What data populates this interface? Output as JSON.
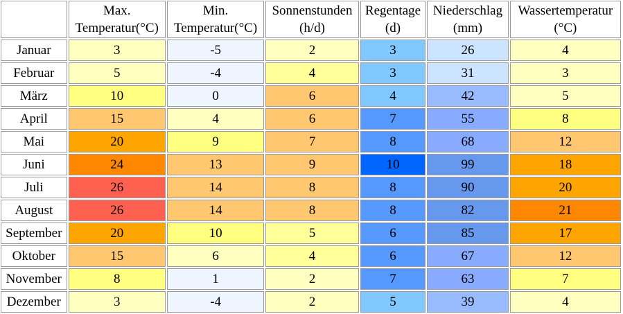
{
  "headers": [
    {
      "line1": "Max.",
      "line2": "Temperatur(°C)"
    },
    {
      "line1": "Min.",
      "line2": "Temperatur(°C)"
    },
    {
      "line1": "Sonnenstunden",
      "line2": "(h/d)"
    },
    {
      "line1": "Regentage",
      "line2": "(d)"
    },
    {
      "line1": "Niederschlag",
      "line2": "(mm)"
    },
    {
      "line1": "Wassertemperatur",
      "line2": "(°C)"
    }
  ],
  "rows": [
    {
      "month": "Januar",
      "values": [
        "3",
        "-5",
        "2",
        "3",
        "26",
        "4"
      ],
      "colors": [
        "#ffffc0",
        "#eef5ff",
        "#ffffc0",
        "#80c8ff",
        "#cce4ff",
        "#ffffc0"
      ]
    },
    {
      "month": "Februar",
      "values": [
        "5",
        "-4",
        "4",
        "3",
        "31",
        "3"
      ],
      "colors": [
        "#ffffc0",
        "#eef5ff",
        "#ffff99",
        "#80c8ff",
        "#cce4ff",
        "#ffffc0"
      ]
    },
    {
      "month": "März",
      "values": [
        "10",
        "0",
        "6",
        "4",
        "42",
        "5"
      ],
      "colors": [
        "#ffff80",
        "#eef5ff",
        "#ffc870",
        "#80c8ff",
        "#99bbff",
        "#ffffc0"
      ]
    },
    {
      "month": "April",
      "values": [
        "15",
        "4",
        "6",
        "7",
        "55",
        "8"
      ],
      "colors": [
        "#ffc870",
        "#ffffc0",
        "#ffc870",
        "#5599ff",
        "#88aaff",
        "#ffff80"
      ]
    },
    {
      "month": "Mai",
      "values": [
        "20",
        "9",
        "7",
        "8",
        "68",
        "12"
      ],
      "colors": [
        "#ffa500",
        "#ffff80",
        "#ffc870",
        "#5599ff",
        "#88aaff",
        "#ffc870"
      ]
    },
    {
      "month": "Juni",
      "values": [
        "24",
        "13",
        "9",
        "10",
        "99",
        "18"
      ],
      "colors": [
        "#ff8800",
        "#ffc870",
        "#ffc870",
        "#0066ff",
        "#6699ee",
        "#ffa500"
      ]
    },
    {
      "month": "Juli",
      "values": [
        "26",
        "14",
        "8",
        "8",
        "90",
        "20"
      ],
      "colors": [
        "#ff6050",
        "#ffc870",
        "#ffc870",
        "#5599ff",
        "#6699ee",
        "#ffa500"
      ]
    },
    {
      "month": "August",
      "values": [
        "26",
        "14",
        "8",
        "8",
        "82",
        "21"
      ],
      "colors": [
        "#ff6050",
        "#ffc870",
        "#ffc870",
        "#5599ff",
        "#6699ee",
        "#ff8800"
      ]
    },
    {
      "month": "September",
      "values": [
        "20",
        "10",
        "5",
        "6",
        "85",
        "17"
      ],
      "colors": [
        "#ffa500",
        "#ffff80",
        "#ffff99",
        "#5599ff",
        "#6699ee",
        "#ffa500"
      ]
    },
    {
      "month": "Oktober",
      "values": [
        "15",
        "6",
        "4",
        "6",
        "67",
        "12"
      ],
      "colors": [
        "#ffc870",
        "#ffffc0",
        "#ffff99",
        "#5599ff",
        "#88aaff",
        "#ffc870"
      ]
    },
    {
      "month": "November",
      "values": [
        "8",
        "1",
        "2",
        "7",
        "63",
        "7"
      ],
      "colors": [
        "#ffff80",
        "#eef5ff",
        "#ffffc0",
        "#5599ff",
        "#88aaff",
        "#ffff80"
      ]
    },
    {
      "month": "Dezember",
      "values": [
        "3",
        "-4",
        "2",
        "5",
        "39",
        "4"
      ],
      "colors": [
        "#ffffc0",
        "#eef5ff",
        "#ffffc0",
        "#80c8ff",
        "#99bbff",
        "#ffffc0"
      ]
    }
  ]
}
